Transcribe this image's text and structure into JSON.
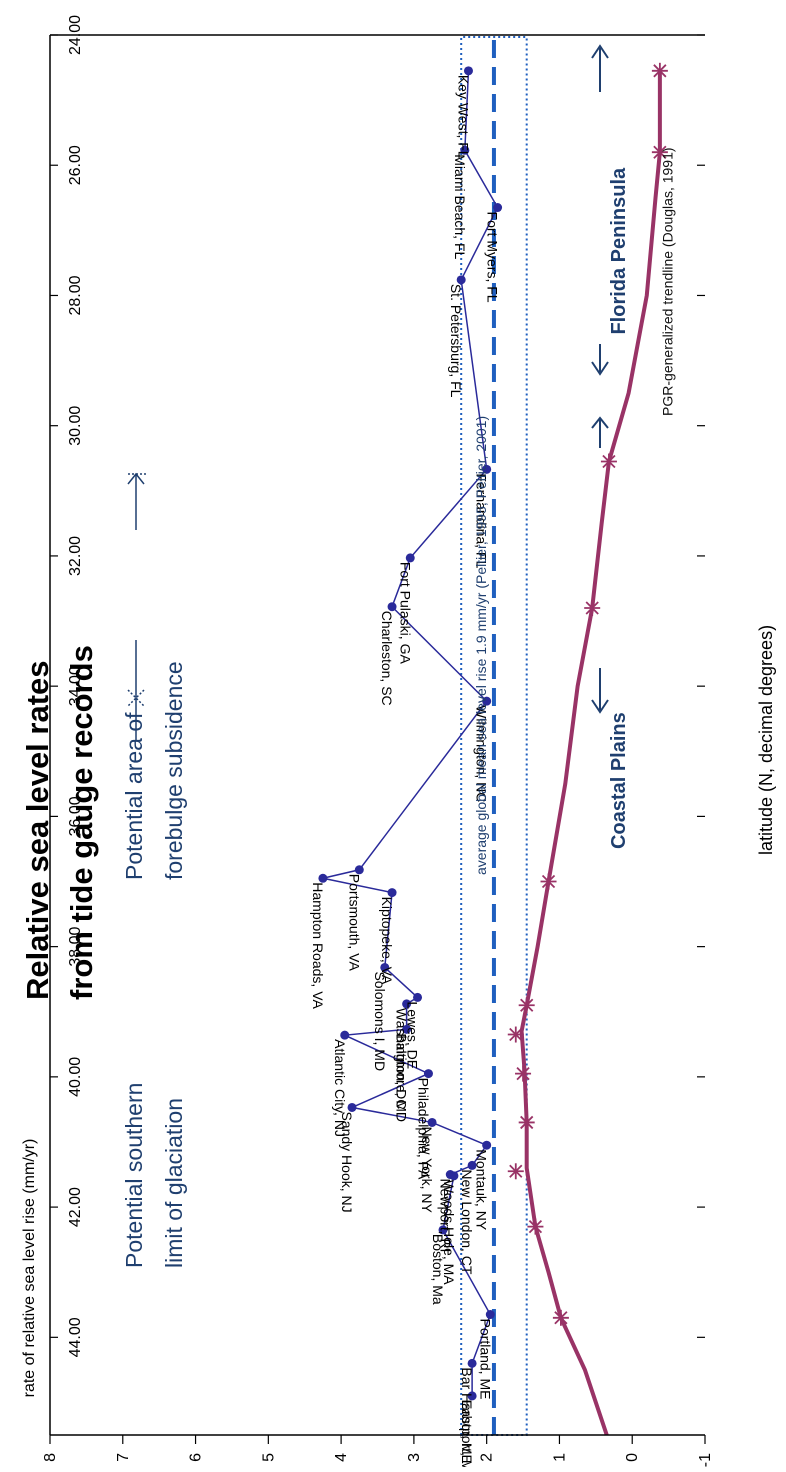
{
  "chart_data": {
    "type": "line",
    "title_lines": [
      "Relative sea level rates",
      "from tide gauge records"
    ],
    "xlabel": "latitude (N, decimal degrees)",
    "ylabel": "rate of relative sea level rise (mm/yr)",
    "xlim": [
      24.0,
      45.5
    ],
    "ylim": [
      -1,
      8
    ],
    "x_reversed": true,
    "x_ticks": [
      "44.00",
      "42.00",
      "40.00",
      "38.00",
      "36.00",
      "34.00",
      "32.00",
      "30.00",
      "28.00",
      "26.00",
      "24.00"
    ],
    "y_ticks": [
      "-1",
      "0",
      "1",
      "2",
      "3",
      "4",
      "5",
      "6",
      "7",
      "8"
    ],
    "gauge_series": {
      "color": "#2a2a9a",
      "points": [
        {
          "label": "Eastport, ME",
          "x": 44.9,
          "y": 2.2
        },
        {
          "label": "Bar Harbor, ME",
          "x": 44.4,
          "y": 2.2
        },
        {
          "label": "Portland, ME",
          "x": 43.65,
          "y": 1.95
        },
        {
          "label": "Boston, Ma",
          "x": 42.35,
          "y": 2.6
        },
        {
          "label": "Woods Hole, MA",
          "x": 41.52,
          "y": 2.45
        },
        {
          "label": "Newport, RI",
          "x": 41.5,
          "y": 2.5
        },
        {
          "label": "New London, CT",
          "x": 41.36,
          "y": 2.2
        },
        {
          "label": "Montauk, NY",
          "x": 41.05,
          "y": 2.0
        },
        {
          "label": "New York, NY",
          "x": 40.7,
          "y": 2.75
        },
        {
          "label": "Sandy Hook, NJ",
          "x": 40.47,
          "y": 3.85
        },
        {
          "label": "Philadelphia, PA",
          "x": 39.95,
          "y": 2.8
        },
        {
          "label": "Atlantic City, NJ",
          "x": 39.36,
          "y": 3.95
        },
        {
          "label": "Baltimore, MD",
          "x": 39.27,
          "y": 3.1
        },
        {
          "label": "Washington, DC",
          "x": 38.88,
          "y": 3.1
        },
        {
          "label": "Lewes, DE",
          "x": 38.78,
          "y": 2.95
        },
        {
          "label": "Solomons I, MD",
          "x": 38.32,
          "y": 3.4
        },
        {
          "label": "Kiptopeke, VA",
          "x": 37.17,
          "y": 3.3
        },
        {
          "label": "Hampton Roads, VA",
          "x": 36.95,
          "y": 4.25
        },
        {
          "label": "Portsmouth, VA",
          "x": 36.82,
          "y": 3.75
        },
        {
          "label": "Wilmington, NC",
          "x": 34.23,
          "y": 2.0
        },
        {
          "label": "Charleston, SC",
          "x": 32.78,
          "y": 3.3
        },
        {
          "label": "Fort Pulaski, GA",
          "x": 32.03,
          "y": 3.05
        },
        {
          "label": "Fernandina, FL",
          "x": 30.67,
          "y": 2.0
        },
        {
          "label": "St. Petersburg, FL",
          "x": 27.76,
          "y": 2.35
        },
        {
          "label": "Fort Myers, FL",
          "x": 26.65,
          "y": 1.85
        },
        {
          "label": "Miami Beach, FL",
          "x": 25.77,
          "y": 2.3
        },
        {
          "label": "Key West, FL",
          "x": 24.55,
          "y": 2.25
        }
      ]
    },
    "pgr_series": {
      "color": "#993366",
      "label": "PGR-generalized trendline (Douglas, 1991)",
      "line": [
        {
          "x": 45.5,
          "y": 0.35
        },
        {
          "x": 44.5,
          "y": 0.65
        },
        {
          "x": 43.7,
          "y": 0.98
        },
        {
          "x": 43.0,
          "y": 1.15
        },
        {
          "x": 42.3,
          "y": 1.33
        },
        {
          "x": 41.4,
          "y": 1.45
        },
        {
          "x": 40.7,
          "y": 1.45
        },
        {
          "x": 39.9,
          "y": 1.48
        },
        {
          "x": 39.3,
          "y": 1.52
        },
        {
          "x": 38.9,
          "y": 1.45
        },
        {
          "x": 38.0,
          "y": 1.3
        },
        {
          "x": 37.0,
          "y": 1.15
        },
        {
          "x": 35.5,
          "y": 0.92
        },
        {
          "x": 34.0,
          "y": 0.75
        },
        {
          "x": 32.8,
          "y": 0.55
        },
        {
          "x": 31.5,
          "y": 0.42
        },
        {
          "x": 30.55,
          "y": 0.32
        },
        {
          "x": 29.5,
          "y": 0.05
        },
        {
          "x": 28.0,
          "y": -0.2
        },
        {
          "x": 26.5,
          "y": -0.32
        },
        {
          "x": 25.8,
          "y": -0.38
        },
        {
          "x": 24.55,
          "y": -0.38
        }
      ],
      "markers": [
        {
          "x": 43.7,
          "y": 0.98
        },
        {
          "x": 42.3,
          "y": 1.33
        },
        {
          "x": 41.45,
          "y": 1.6
        },
        {
          "x": 40.7,
          "y": 1.45
        },
        {
          "x": 39.95,
          "y": 1.5
        },
        {
          "x": 39.35,
          "y": 1.6
        },
        {
          "x": 38.9,
          "y": 1.45
        },
        {
          "x": 37.0,
          "y": 1.15
        },
        {
          "x": 32.8,
          "y": 0.55
        },
        {
          "x": 30.55,
          "y": 0.32
        },
        {
          "x": 25.8,
          "y": -0.38
        },
        {
          "x": 24.55,
          "y": -0.38
        }
      ]
    },
    "mean_line": {
      "y": 1.9,
      "label": "average global mean sea level rise 1.9 mm/yr (Peltier, 1995; Peltier, 2001)",
      "band": [
        1.45,
        2.35
      ],
      "color": "#1f5fbf"
    },
    "annotations": {
      "glaciation": "Potential southern limit of glaciation",
      "forebulge": "Potential area of forebulge subsidence",
      "coastal_plains": "Coastal Plains",
      "florida_peninsula": "Florida Peninsula"
    },
    "annotation_color": "#1f3f6f"
  }
}
